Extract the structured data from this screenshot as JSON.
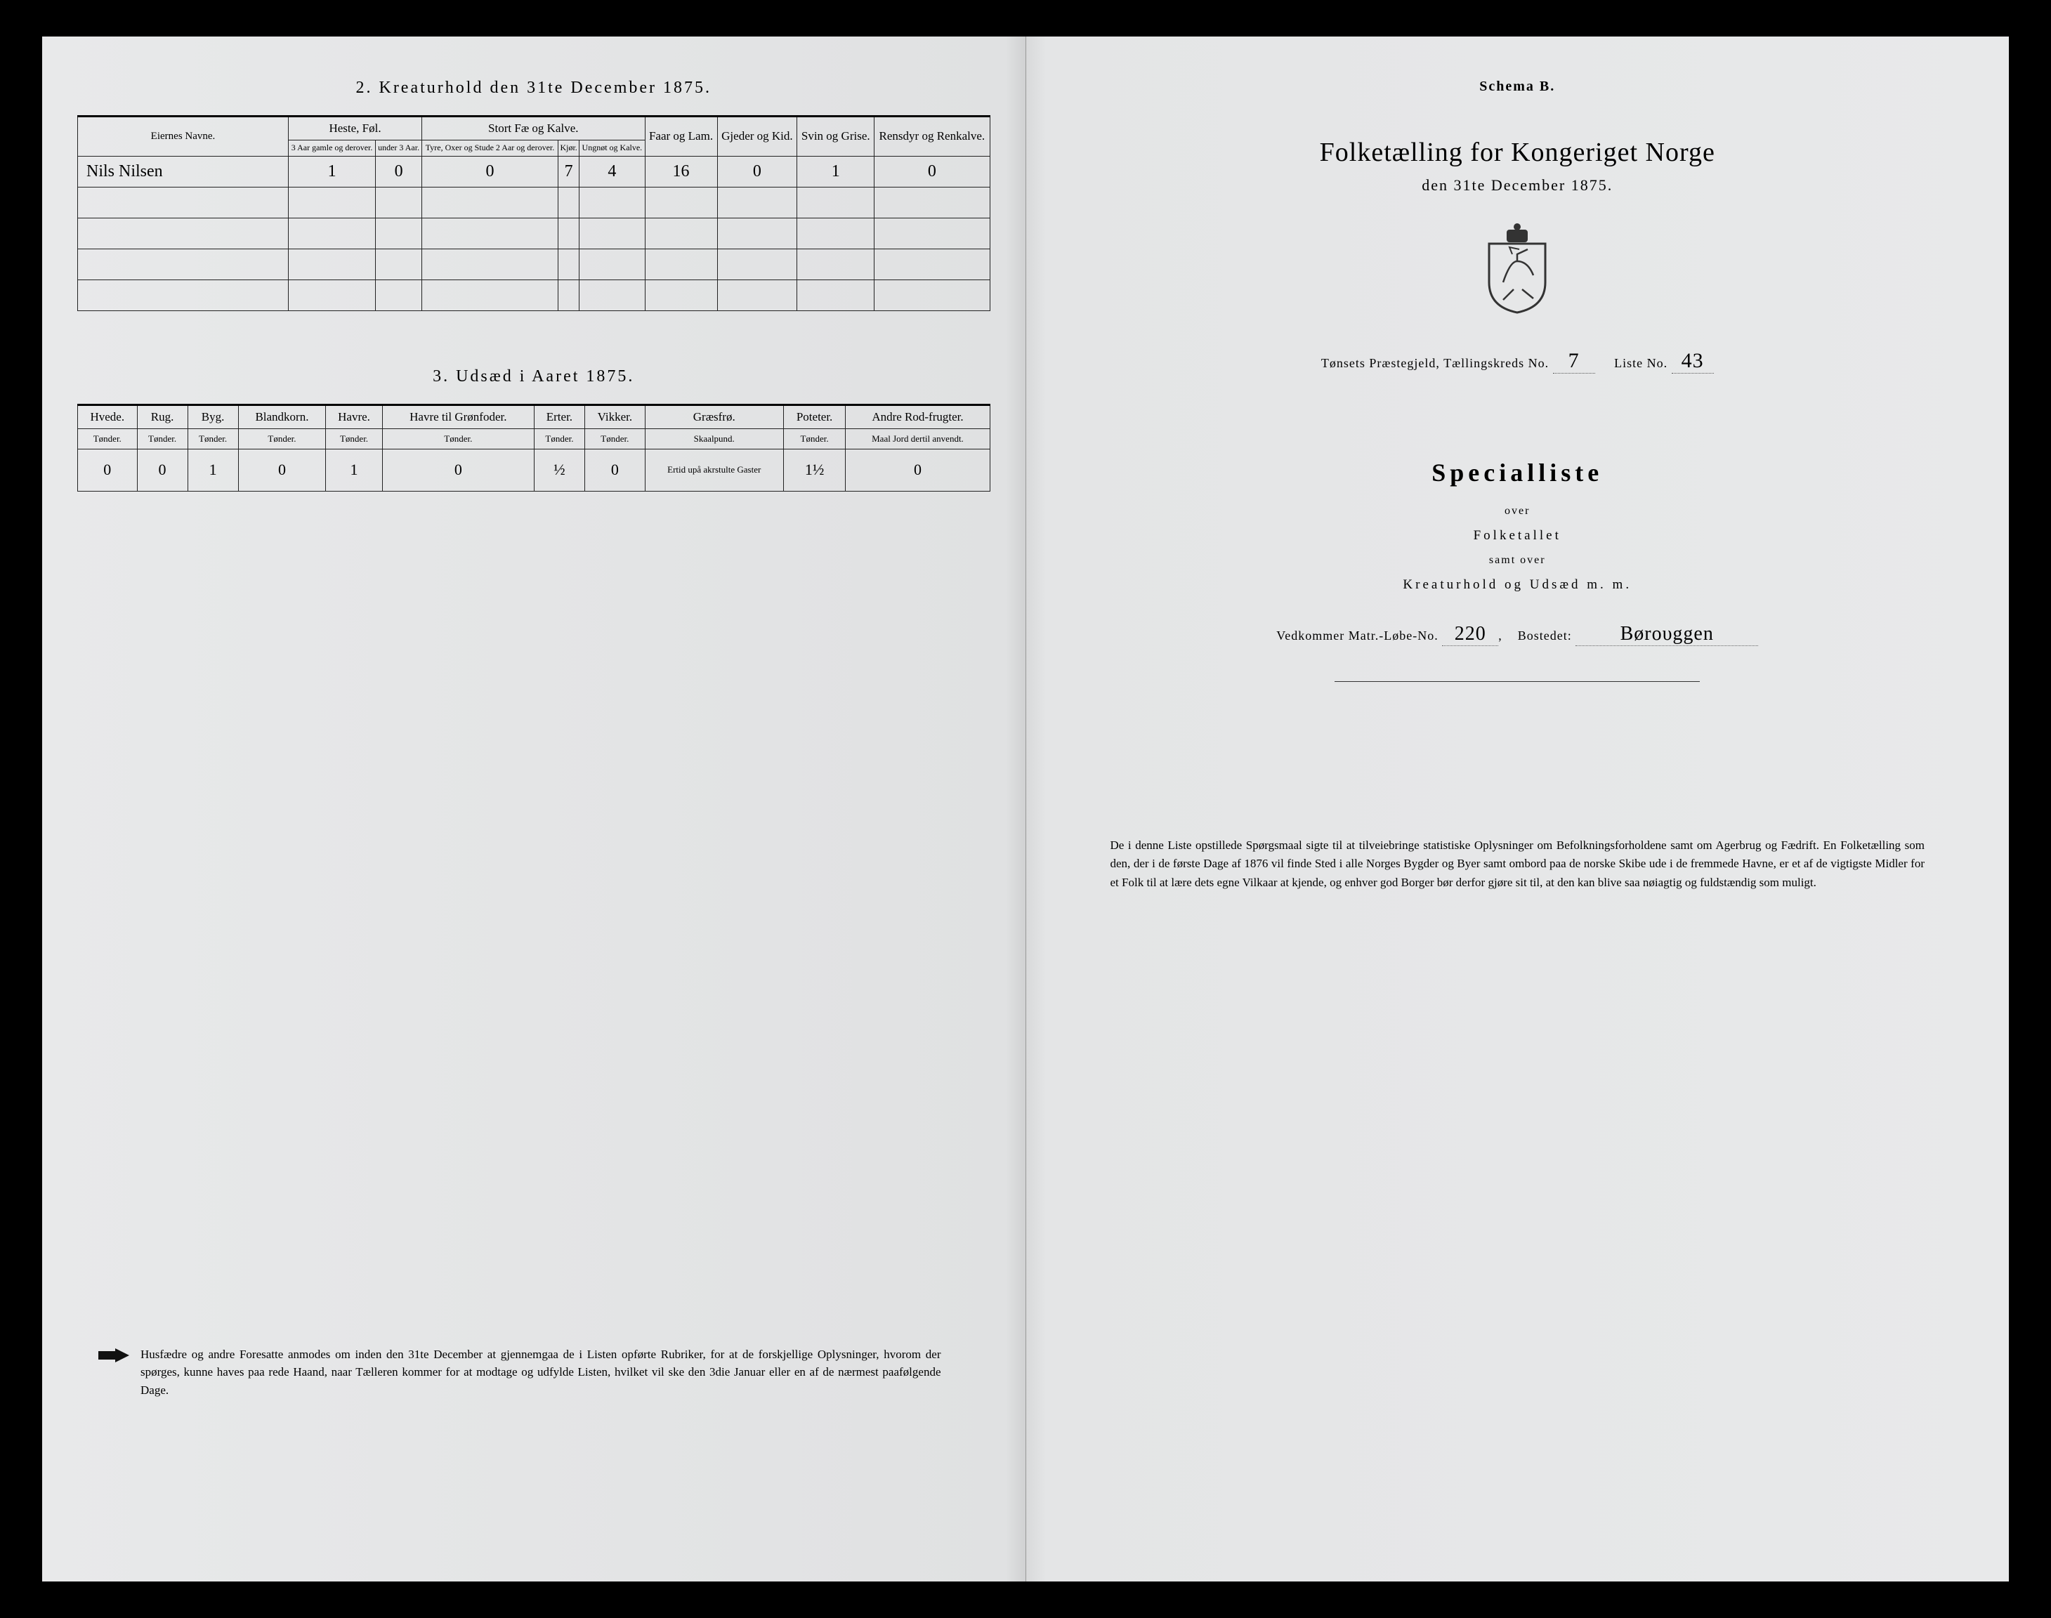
{
  "left": {
    "section2_heading": "2.  Kreaturhold den 31te December 1875.",
    "kreatur_table": {
      "owner_label": "Eiernes Navne.",
      "groups": [
        {
          "label": "Heste, Føl.",
          "subs": [
            "3 Aar gamle og derover.",
            "under 3 Aar."
          ]
        },
        {
          "label": "Stort Fæ og Kalve.",
          "subs": [
            "Tyre, Oxer og Stude 2 Aar og derover.",
            "Kjør.",
            "Ungnøt og Kalve."
          ]
        },
        {
          "label": "Faar og Lam.",
          "subs": []
        },
        {
          "label": "Gjeder og Kid.",
          "subs": []
        },
        {
          "label": "Svin og Grise.",
          "subs": []
        },
        {
          "label": "Rensdyr og Renkalve.",
          "subs": []
        }
      ],
      "rows": [
        {
          "owner": "Nils Nilsen",
          "values": [
            "1",
            "0",
            "0",
            "7",
            "4",
            "16",
            "0",
            "1",
            "0"
          ]
        },
        {
          "owner": "",
          "values": [
            "",
            "",
            "",
            "",
            "",
            "",
            "",
            "",
            ""
          ]
        },
        {
          "owner": "",
          "values": [
            "",
            "",
            "",
            "",
            "",
            "",
            "",
            "",
            ""
          ]
        },
        {
          "owner": "",
          "values": [
            "",
            "",
            "",
            "",
            "",
            "",
            "",
            "",
            ""
          ]
        },
        {
          "owner": "",
          "values": [
            "",
            "",
            "",
            "",
            "",
            "",
            "",
            "",
            ""
          ]
        }
      ]
    },
    "section3_heading": "3.  Udsæd i Aaret 1875.",
    "udsaed_table": {
      "columns": [
        {
          "crop": "Hvede.",
          "unit": "Tønder."
        },
        {
          "crop": "Rug.",
          "unit": "Tønder."
        },
        {
          "crop": "Byg.",
          "unit": "Tønder."
        },
        {
          "crop": "Blandkorn.",
          "unit": "Tønder."
        },
        {
          "crop": "Havre.",
          "unit": "Tønder."
        },
        {
          "crop": "Havre til Grønfoder.",
          "unit": "Tønder."
        },
        {
          "crop": "Erter.",
          "unit": "Tønder."
        },
        {
          "crop": "Vikker.",
          "unit": "Tønder."
        },
        {
          "crop": "Græsfrø.",
          "unit": "Skaalpund."
        },
        {
          "crop": "Poteter.",
          "unit": "Tønder."
        },
        {
          "crop": "Andre Rod-frugter.",
          "unit": "Maal Jord dertil anvendt."
        }
      ],
      "row": [
        "0",
        "0",
        "1",
        "0",
        "1",
        "0",
        "½",
        "0",
        "—",
        "1½",
        "0"
      ],
      "note_col8": "Ertid upå akrstulte Gaster"
    },
    "footer_note": "Husfædre og andre Foresatte anmodes om inden den 31te December at gjennemgaa de i Listen opførte Rubriker, for at de forskjellige Oplysninger, hvorom der spørges, kunne haves paa rede Haand, naar Tælleren kommer for at modtage og udfylde Listen, hvilket vil ske den 3die Januar eller en af de nærmest paafølgende Dage."
  },
  "right": {
    "schema": "Schema B.",
    "title": "Folketælling for Kongeriget Norge",
    "date": "den 31te December 1875.",
    "parish_prefix": "Tønsets Præstegjeld, Tællingskreds No.",
    "kreds_no": "7",
    "liste_label": "Liste No.",
    "liste_no": "43",
    "specialliste": "Specialliste",
    "over": "over",
    "folketallet": "Folketallet",
    "samt_over": "samt over",
    "kreatur_line": "Kreaturhold og Udsæd m. m.",
    "matr_label": "Vedkommer Matr.-Løbe-No.",
    "matr_no": "220",
    "bosted_label": "Bostedet:",
    "bosted": "Børουggen",
    "bottom_para": "De i denne Liste opstillede Spørgsmaal sigte til at tilveiebringe statistiske Oplysninger om Befolkningsforholdene samt om Agerbrug og Fædrift.  En Folketælling som den, der i de første Dage af 1876 vil finde Sted i alle Norges Bygder og Byer samt ombord paa de norske Skibe ude i de fremmede Havne, er et af de vigtigste Midler for et Folk til at lære dets egne Vilkaar at kjende, og enhver god Borger bør derfor gjøre sit til, at den kan blive saa nøiagtig og fuldstændig som muligt."
  }
}
